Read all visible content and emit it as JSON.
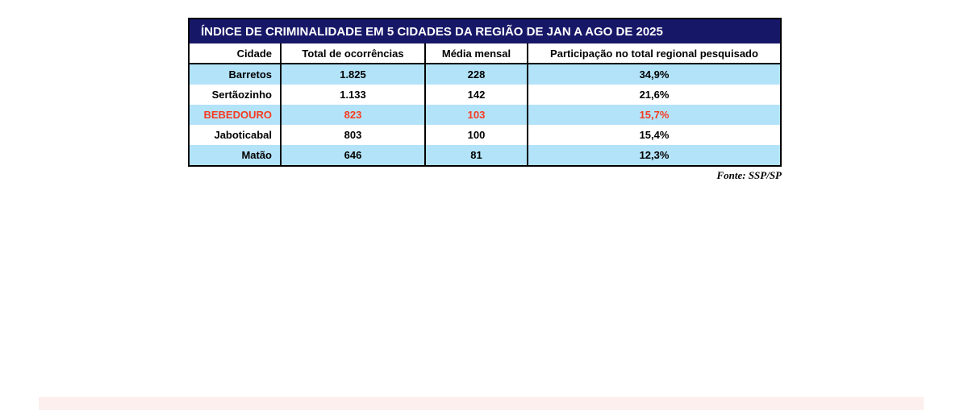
{
  "title": "ÍNDICE DE CRIMINALIDADE EM 5 CIDADES DA REGIÃO DE JAN A AGO DE 2025",
  "table": {
    "columns": [
      "Cidade",
      "Total de ocorrências",
      "Média mensal",
      "Participação no total regional pesquisado"
    ],
    "rows": [
      {
        "cidade": "Barretos",
        "total": "1.825",
        "media": "228",
        "participacao": "34,9%"
      },
      {
        "cidade": "Sertãozinho",
        "total": "1.133",
        "media": "142",
        "participacao": "21,6%"
      },
      {
        "cidade": "BEBEDOURO",
        "total": "823",
        "media": "103",
        "participacao": "15,7%"
      },
      {
        "cidade": "Jaboticabal",
        "total": "803",
        "media": "100",
        "participacao": "15,4%"
      },
      {
        "cidade": "Matão",
        "total": "646",
        "media": "81",
        "participacao": "12,3%"
      }
    ],
    "highlighted_row": "BEBEDOURO"
  },
  "source": "Fonte: SSP/SP",
  "colors": {
    "title_bg": "#171768",
    "title_text": "#ffffff",
    "row_alt_bg": "#b3e3f9",
    "row_bg": "#ffffff",
    "highlight_text": "#f63b21",
    "border": "#000000",
    "bottom_strip_bg": "#fcefed"
  },
  "chart_data": {
    "type": "table",
    "title": "ÍNDICE DE CRIMINALIDADE EM 5 CIDADES DA REGIÃO DE JAN A AGO DE 2025",
    "columns": [
      "Cidade",
      "Total de ocorrências",
      "Média mensal",
      "Participação no total regional pesquisado"
    ],
    "categories": [
      "Barretos",
      "Sertãozinho",
      "BEBEDOURO",
      "Jaboticabal",
      "Matão"
    ],
    "series": [
      {
        "name": "Total de ocorrências",
        "values": [
          1825,
          1133,
          823,
          803,
          646
        ]
      },
      {
        "name": "Média mensal",
        "values": [
          228,
          142,
          103,
          100,
          81
        ]
      },
      {
        "name": "Participação no total regional pesquisado (%)",
        "values": [
          34.9,
          21.6,
          15.7,
          15.4,
          12.3
        ]
      }
    ],
    "highlighted_category": "BEBEDOURO",
    "source": "Fonte: SSP/SP"
  }
}
